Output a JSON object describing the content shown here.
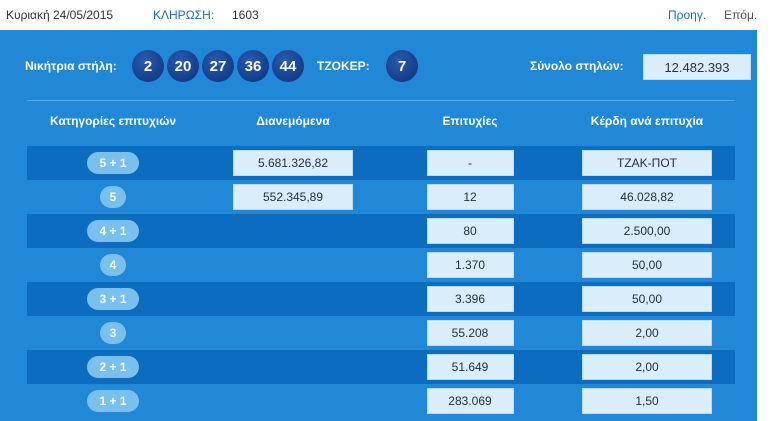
{
  "header": {
    "date": "Κυριακή 24/05/2015",
    "draw_label": "ΚΛΗΡΩΣΗ:",
    "draw_number": "1603",
    "prev": "Προηγ.",
    "next": "Επόμ."
  },
  "winning": {
    "label": "Νικήτρια στήλη:",
    "numbers": [
      "2",
      "20",
      "27",
      "36",
      "44"
    ],
    "joker_label": "ΤΖΟΚΕΡ:",
    "joker": "7",
    "total_label": "Σύνολο στηλών:",
    "total": "12.482.393"
  },
  "table": {
    "headers": [
      "Κατηγορίες επιτυχιών",
      "Διανεμόμενα",
      "Επιτυχίες",
      "Κέρδη ανά επιτυχία"
    ],
    "rows": [
      [
        "5 + 1",
        "5.681.326,82",
        "-",
        "ΤΖΑΚ-ΠΟΤ"
      ],
      [
        "5",
        "552.345,89",
        "12",
        "46.028,82"
      ],
      [
        "4 + 1",
        null,
        "80",
        "2.500,00"
      ],
      [
        "4",
        null,
        "1.370",
        "50,00"
      ],
      [
        "3 + 1",
        null,
        "3.396",
        "50,00"
      ],
      [
        "3",
        null,
        "55.208",
        "2,00"
      ],
      [
        "2 + 1",
        null,
        "51.649",
        "2,00"
      ],
      [
        "1 + 1",
        null,
        "283.069",
        "1,50"
      ]
    ]
  }
}
